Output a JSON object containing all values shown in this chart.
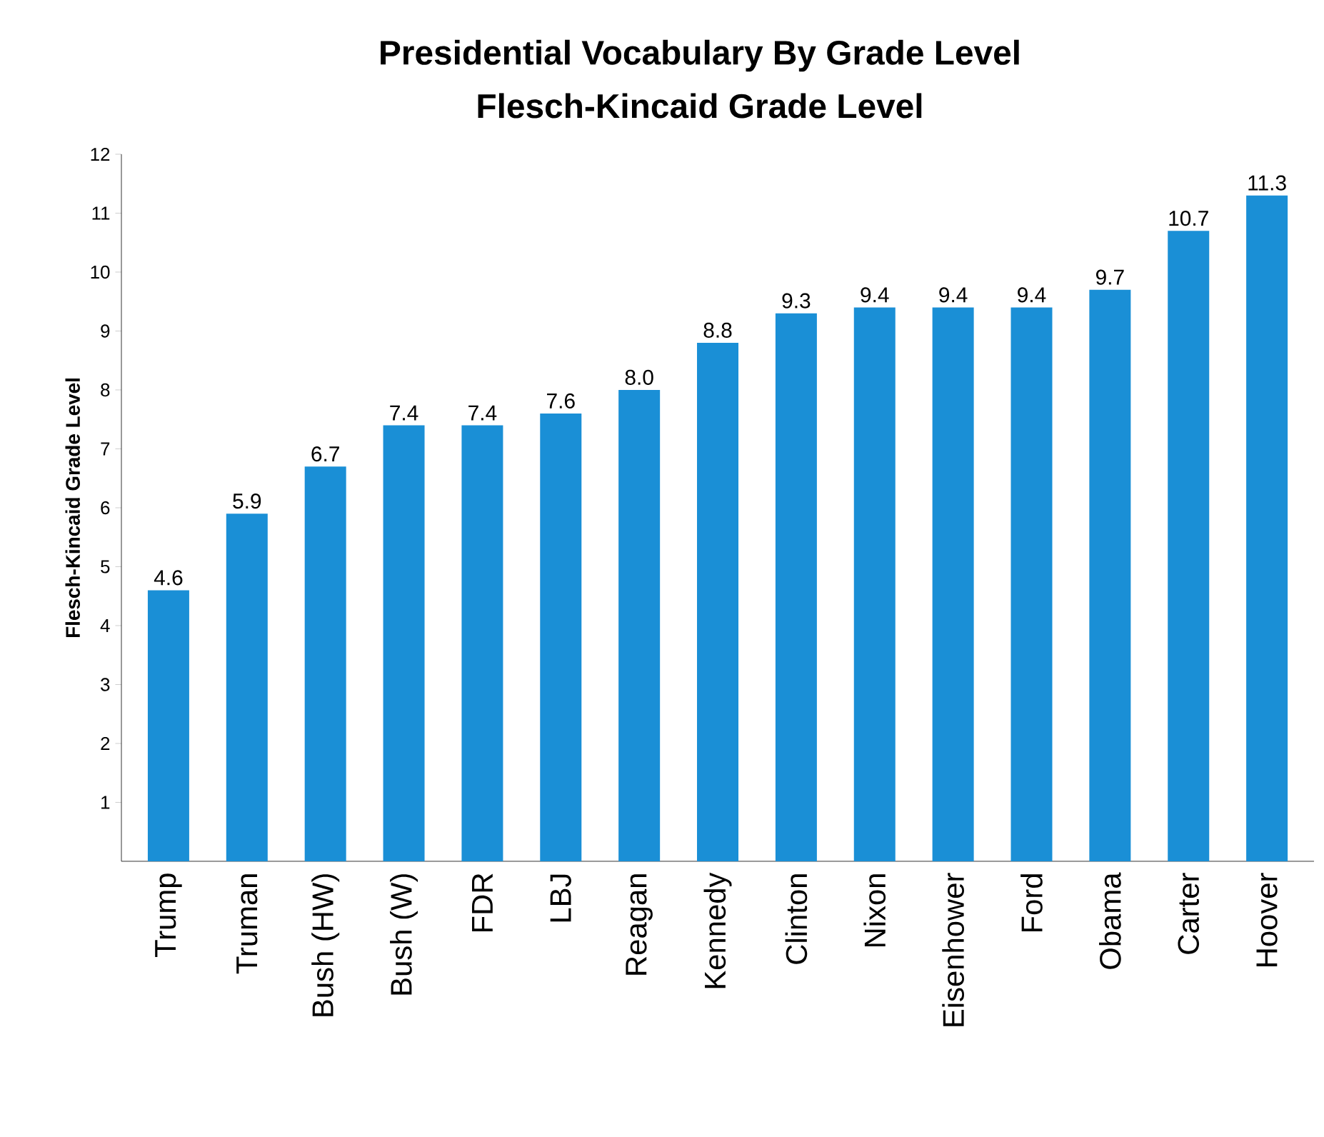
{
  "chart_data": {
    "type": "bar",
    "title": "Presidential Vocabulary By Grade Level",
    "subtitle": "Flesch-Kincaid Grade Level",
    "ylabel": "Flesch-Kincaid Grade Level",
    "categories": [
      "Trump",
      "Truman",
      "Bush (HW)",
      "Bush (W)",
      "FDR",
      "LBJ",
      "Reagan",
      "Kennedy",
      "Clinton",
      "Nixon",
      "Eisenhower",
      "Ford",
      "Obama",
      "Carter",
      "Hoover"
    ],
    "values": [
      4.6,
      5.9,
      6.7,
      7.4,
      7.4,
      7.6,
      8.0,
      8.8,
      9.3,
      9.4,
      9.4,
      9.4,
      9.7,
      10.7,
      11.3
    ],
    "color": "#1a8fd6",
    "ylim": [
      0,
      12
    ],
    "yticks": [
      1,
      2,
      3,
      4,
      5,
      6,
      7,
      8,
      9,
      10,
      11,
      12
    ],
    "value_labels": [
      "4.6",
      "5.9",
      "6.7",
      "7.4",
      "7.4",
      "7.6",
      "8.0",
      "8.8",
      "9.3",
      "9.4",
      "9.4",
      "9.4",
      "9.7",
      "10.7",
      "11.3"
    ],
    "grid": false
  }
}
